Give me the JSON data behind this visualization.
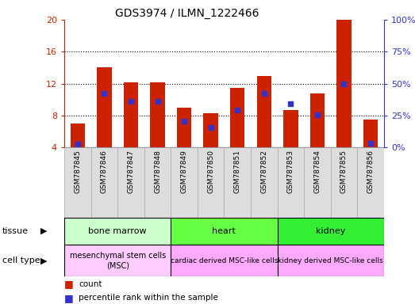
{
  "title": "GDS3974 / ILMN_1222466",
  "samples": [
    "GSM787845",
    "GSM787846",
    "GSM787847",
    "GSM787848",
    "GSM787849",
    "GSM787850",
    "GSM787851",
    "GSM787852",
    "GSM787853",
    "GSM787854",
    "GSM787855",
    "GSM787856"
  ],
  "bar_heights": [
    7.0,
    14.0,
    12.2,
    12.2,
    9.0,
    8.3,
    11.5,
    13.0,
    8.7,
    10.8,
    20.0,
    7.5
  ],
  "bar_bottom": 4.0,
  "blue_marker_y": [
    4.4,
    10.8,
    9.8,
    9.8,
    7.3,
    6.5,
    8.7,
    10.8,
    9.5,
    8.1,
    12.0,
    4.5
  ],
  "ylim_left": [
    4,
    20
  ],
  "ylim_right": [
    0,
    100
  ],
  "yticks_left": [
    4,
    8,
    12,
    16,
    20
  ],
  "yticks_right": [
    0,
    25,
    50,
    75,
    100
  ],
  "bar_color": "#cc2200",
  "blue_color": "#3333cc",
  "tissue_groups": [
    {
      "label": "bone marrow",
      "start": 0,
      "end": 3,
      "color": "#ccffcc"
    },
    {
      "label": "heart",
      "start": 4,
      "end": 7,
      "color": "#55ee55"
    },
    {
      "label": "kidney",
      "start": 8,
      "end": 11,
      "color": "#33dd33"
    }
  ],
  "cell_type_groups": [
    {
      "label": "mesenchymal stem cells\n(MSC)",
      "start": 0,
      "end": 3,
      "color": "#ffccff"
    },
    {
      "label": "cardiac derived MSC-like cells",
      "start": 4,
      "end": 7,
      "color": "#ffaaff"
    },
    {
      "label": "kidney derived MSC-like cells",
      "start": 8,
      "end": 11,
      "color": "#ffaaff"
    }
  ],
  "legend_count_color": "#cc2200",
  "legend_percentile_color": "#3333cc",
  "tissue_label": "tissue",
  "cell_type_label": "cell type",
  "left_axis_color": "#cc2200",
  "right_axis_color": "#3333cc",
  "sample_bg_color": "#dddddd",
  "grid_ticks": [
    8,
    12,
    16
  ]
}
